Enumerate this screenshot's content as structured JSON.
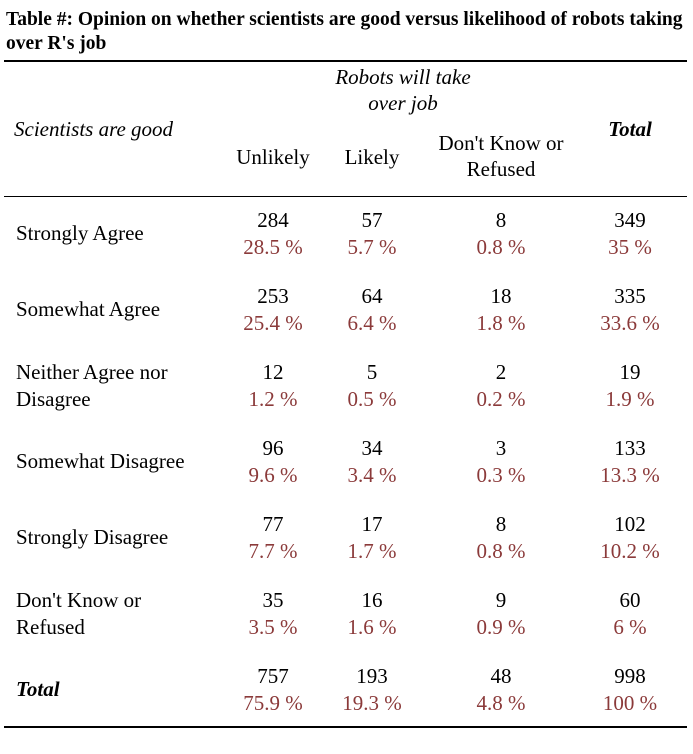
{
  "caption": "Table #: Opinion on whether scientists are good versus likelihood of robots taking over R's job",
  "header": {
    "row_variable": "Scientists are good",
    "col_variable": "Robots will take over job",
    "col_variable_line1": "Robots will take",
    "col_variable_line2": "over job",
    "columns": [
      "Unlikely",
      "Likely",
      "Don't Know or Refused"
    ],
    "dk_line1": "Don't Know or",
    "dk_line2": "Refused",
    "total": "Total"
  },
  "rows": [
    {
      "label": "Strongly Agree",
      "cells": [
        {
          "n": "284",
          "pct": "28.5 %"
        },
        {
          "n": "57",
          "pct": "5.7 %"
        },
        {
          "n": "8",
          "pct": "0.8 %"
        },
        {
          "n": "349",
          "pct": "35 %"
        }
      ]
    },
    {
      "label": "Somewhat Agree",
      "cells": [
        {
          "n": "253",
          "pct": "25.4 %"
        },
        {
          "n": "64",
          "pct": "6.4 %"
        },
        {
          "n": "18",
          "pct": "1.8 %"
        },
        {
          "n": "335",
          "pct": "33.6 %"
        }
      ]
    },
    {
      "label": "Neither Agree nor Disagree",
      "label_line1": "Neither Agree nor",
      "label_line2": "Disagree",
      "cells": [
        {
          "n": "12",
          "pct": "1.2 %"
        },
        {
          "n": "5",
          "pct": "0.5 %"
        },
        {
          "n": "2",
          "pct": "0.2 %"
        },
        {
          "n": "19",
          "pct": "1.9 %"
        }
      ]
    },
    {
      "label": "Somewhat Disagree",
      "cells": [
        {
          "n": "96",
          "pct": "9.6 %"
        },
        {
          "n": "34",
          "pct": "3.4 %"
        },
        {
          "n": "3",
          "pct": "0.3 %"
        },
        {
          "n": "133",
          "pct": "13.3 %"
        }
      ]
    },
    {
      "label": "Strongly Disagree",
      "cells": [
        {
          "n": "77",
          "pct": "7.7 %"
        },
        {
          "n": "17",
          "pct": "1.7 %"
        },
        {
          "n": "8",
          "pct": "0.8 %"
        },
        {
          "n": "102",
          "pct": "10.2 %"
        }
      ]
    },
    {
      "label": "Don't Know or Refused",
      "label_line1": "Don't Know or",
      "label_line2": "Refused",
      "cells": [
        {
          "n": "35",
          "pct": "3.5 %"
        },
        {
          "n": "16",
          "pct": "1.6 %"
        },
        {
          "n": "9",
          "pct": "0.9 %"
        },
        {
          "n": "60",
          "pct": "6 %"
        }
      ]
    }
  ],
  "total_row": {
    "label": "Total",
    "cells": [
      {
        "n": "757",
        "pct": "75.9 %"
      },
      {
        "n": "193",
        "pct": "19.3 %"
      },
      {
        "n": "48",
        "pct": "4.8 %"
      },
      {
        "n": "998",
        "pct": "100 %"
      }
    ]
  },
  "colors": {
    "percent_text": "#8b3a3a",
    "count_text": "#000000",
    "rules": "#000000"
  }
}
